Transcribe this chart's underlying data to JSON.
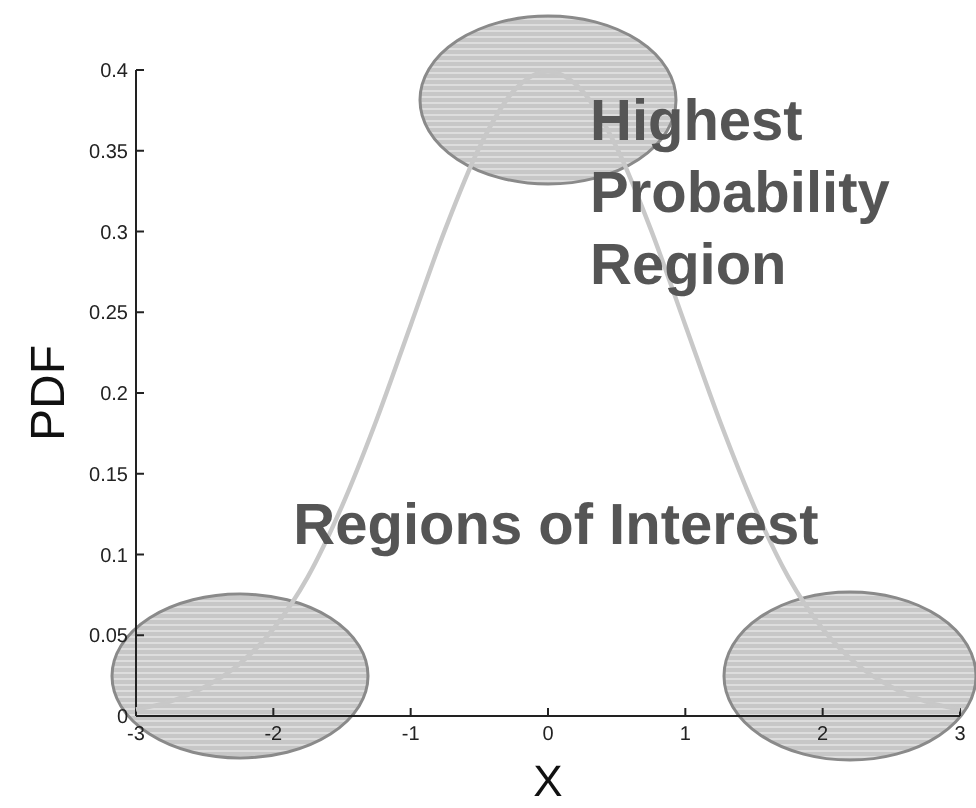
{
  "chart_data": {
    "type": "line",
    "xlabel": "X",
    "ylabel": "PDF",
    "x": [
      -3,
      -2.75,
      -2.5,
      -2.25,
      -2,
      -1.75,
      -1.5,
      -1.25,
      -1,
      -0.75,
      -0.5,
      -0.25,
      0,
      0.25,
      0.5,
      0.75,
      1,
      1.25,
      1.5,
      1.75,
      2,
      2.25,
      2.5,
      2.75,
      3
    ],
    "series": [
      {
        "color": "#c8c8c8",
        "values": [
          0.004,
          0.009,
          0.018,
          0.032,
          0.054,
          0.086,
          0.13,
          0.183,
          0.242,
          0.301,
          0.352,
          0.387,
          0.399,
          0.387,
          0.352,
          0.301,
          0.242,
          0.183,
          0.13,
          0.086,
          0.054,
          0.032,
          0.018,
          0.009,
          0.004
        ]
      }
    ],
    "xlim": [
      -3,
      3
    ],
    "xticks": [
      -3,
      -2,
      -1,
      0,
      1,
      2,
      3
    ],
    "ylim": [
      0,
      0.4
    ],
    "yticks": [
      0,
      0.05,
      0.1,
      0.15,
      0.2,
      0.25,
      0.3,
      0.35,
      0.4
    ],
    "annotations": [
      "Highest Probability Region",
      "Regions of Interest"
    ],
    "grid": false,
    "marker": "none",
    "line_style": "solid"
  }
}
